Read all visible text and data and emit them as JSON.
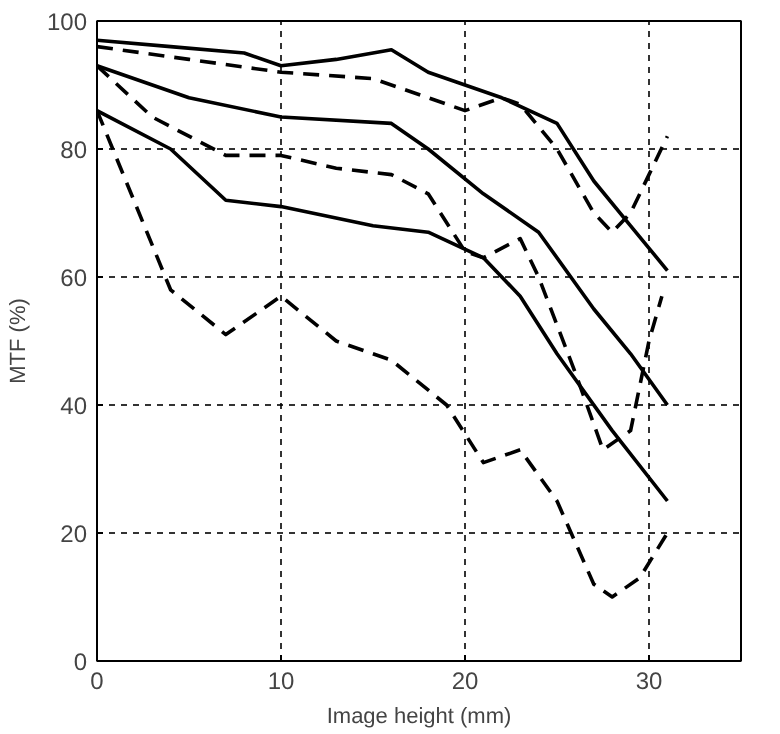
{
  "chart_data": {
    "type": "line",
    "xlabel": "Image height (mm)",
    "ylabel": "MTF (%)",
    "xlim": [
      0,
      35
    ],
    "ylim": [
      0,
      100
    ],
    "xticks": [
      0,
      10,
      20,
      30
    ],
    "yticks": [
      0,
      20,
      40,
      60,
      80,
      100
    ],
    "grid": true,
    "marker": "none",
    "series": [
      {
        "color": "#000000",
        "line_style": "solid",
        "x": [
          0,
          4,
          8,
          10,
          13,
          16,
          18,
          20,
          22,
          25,
          27,
          29,
          31
        ],
        "values": [
          97,
          96,
          95,
          93,
          94,
          95.5,
          92,
          90,
          88,
          84,
          75,
          68,
          61
        ]
      },
      {
        "color": "#000000",
        "line_style": "dashed",
        "x": [
          0,
          5,
          10,
          15,
          18,
          20,
          22,
          23,
          25,
          27,
          28,
          29,
          30,
          31
        ],
        "values": [
          96,
          94,
          92,
          91,
          88,
          86,
          88,
          87,
          80,
          70,
          67,
          70,
          76,
          82
        ]
      },
      {
        "color": "#000000",
        "line_style": "solid",
        "x": [
          0,
          5,
          10,
          16,
          18,
          21,
          24,
          27,
          29,
          31
        ],
        "values": [
          93,
          88,
          85,
          84,
          80,
          73,
          67,
          55,
          48,
          40
        ]
      },
      {
        "color": "#000000",
        "line_style": "dashed",
        "x": [
          0,
          3,
          7,
          10,
          13,
          16,
          18,
          20,
          21,
          23,
          24,
          26,
          27.5,
          29,
          30,
          30.7
        ],
        "values": [
          93,
          85,
          79,
          79,
          77,
          76,
          73,
          64,
          63,
          66,
          60,
          45,
          33,
          36,
          50,
          57
        ]
      },
      {
        "color": "#000000",
        "line_style": "solid",
        "x": [
          0,
          4,
          7,
          10,
          15,
          18,
          21,
          23,
          25,
          28,
          31
        ],
        "values": [
          86,
          80,
          72,
          71,
          68,
          67,
          63,
          57,
          48,
          36,
          25
        ]
      },
      {
        "color": "#000000",
        "line_style": "dashed",
        "x": [
          0,
          2,
          4,
          7,
          10,
          13,
          16,
          19,
          21,
          23,
          25,
          27,
          28,
          29.5,
          31
        ],
        "values": [
          86,
          72,
          58,
          51,
          57,
          50,
          47,
          40,
          31,
          33,
          25,
          12,
          10,
          13,
          20
        ]
      }
    ]
  }
}
